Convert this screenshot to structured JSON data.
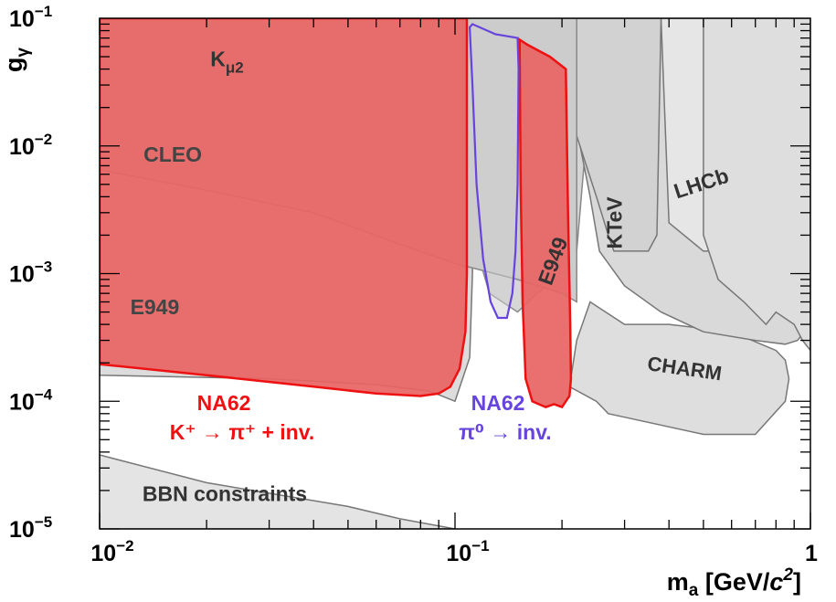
{
  "chart_data": {
    "type": "area",
    "x_scale": "log",
    "y_scale": "log",
    "xlim": [
      0.01,
      1
    ],
    "ylim": [
      1e-05,
      0.1
    ],
    "x_axis_label": "m",
    "x_axis_label_sub": "a",
    "x_axis_unit_open": " [GeV/",
    "x_axis_unit_italic": "c",
    "x_axis_unit_sup": "2",
    "x_axis_unit_close": "]",
    "y_axis_label": "g",
    "y_axis_label_sub": "γ",
    "x_ticks": [
      {
        "value": 0.01,
        "base": "10",
        "exp": "−2"
      },
      {
        "value": 0.1,
        "base": "10",
        "exp": "−1"
      },
      {
        "value": 1,
        "base": "1",
        "exp": ""
      }
    ],
    "y_ticks": [
      {
        "value": 1e-05,
        "base": "10",
        "exp": "−5"
      },
      {
        "value": 0.0001,
        "base": "10",
        "exp": "−4"
      },
      {
        "value": 0.001,
        "base": "10",
        "exp": "−3"
      },
      {
        "value": 0.01,
        "base": "10",
        "exp": "−2"
      },
      {
        "value": 0.1,
        "base": "10",
        "exp": "−1"
      }
    ],
    "grey_regions": [
      {
        "fill": "#e4e4e4",
        "stroke": "#777777",
        "points": [
          [
            0.01,
            3.8e-05
          ],
          [
            0.02,
            2.3e-05
          ],
          [
            0.05,
            1.5e-05
          ],
          [
            0.07,
            1.2e-05
          ],
          [
            0.1,
            1e-05
          ],
          [
            0.01,
            1e-05
          ]
        ]
      },
      {
        "fill": "#dcdcdc",
        "stroke": "#777777",
        "points": [
          [
            0.01,
            0.00016
          ],
          [
            0.03,
            0.00015
          ],
          [
            0.06,
            0.000135
          ],
          [
            0.085,
            0.00012
          ],
          [
            0.1,
            0.0001
          ],
          [
            0.11,
            0.00022
          ],
          [
            0.112,
            0.001
          ],
          [
            0.112,
            0.1
          ],
          [
            0.01,
            0.1
          ]
        ]
      },
      {
        "fill": "#d6d6d6",
        "stroke": "#888888",
        "points": [
          [
            0.11,
            0.1
          ],
          [
            0.112,
            0.002
          ],
          [
            0.125,
            0.0007
          ],
          [
            0.15,
            0.0005
          ],
          [
            0.17,
            0.0007
          ],
          [
            0.205,
            0.001
          ],
          [
            0.22,
            0.0015
          ],
          [
            0.25,
            0.1
          ]
        ]
      },
      {
        "fill": "#dedede",
        "stroke": "#777777",
        "points": [
          [
            0.24,
            0.0006
          ],
          [
            0.3,
            0.0004
          ],
          [
            0.4,
            0.0004
          ],
          [
            0.6,
            0.00035
          ],
          [
            0.8,
            0.00025
          ],
          [
            0.85,
            0.00021
          ],
          [
            0.87,
            0.00015
          ],
          [
            0.85,
            0.0001
          ],
          [
            0.7,
            5.5e-05
          ],
          [
            0.5,
            5.5e-05
          ],
          [
            0.3,
            7.5e-05
          ],
          [
            0.27,
            8e-05
          ],
          [
            0.25,
            0.0001
          ],
          [
            0.21,
            0.00013
          ],
          [
            0.22,
            0.0003
          ]
        ]
      },
      {
        "fill": "#d9d9d9",
        "stroke": "#777777",
        "points": [
          [
            0.22,
            0.1
          ],
          [
            0.225,
            0.01
          ],
          [
            0.24,
            0.004
          ],
          [
            0.255,
            0.0015
          ],
          [
            0.3,
            0.0008
          ],
          [
            0.38,
            0.0005
          ],
          [
            0.5,
            0.00035
          ],
          [
            0.7,
            0.0003
          ],
          [
            0.85,
            0.00028
          ],
          [
            0.92,
            0.0003
          ],
          [
            1,
            0.0004
          ],
          [
            1,
            0.1
          ]
        ]
      },
      {
        "fill": "#e6e6e6",
        "stroke": "#777777",
        "points": [
          [
            0.38,
            0.1
          ],
          [
            0.4,
            0.0025
          ],
          [
            0.5,
            0.0015
          ],
          [
            0.6,
            0.0015
          ],
          [
            0.7,
            0.002
          ],
          [
            0.72,
            0.1
          ]
        ]
      },
      {
        "fill": "#d2d2d2",
        "stroke": "#777777",
        "points": [
          [
            0.2,
            0.1
          ],
          [
            0.205,
            0.07
          ],
          [
            0.22,
            0.012
          ],
          [
            0.25,
            0.004
          ],
          [
            0.27,
            0.002
          ],
          [
            0.28,
            0.0015
          ],
          [
            0.35,
            0.0015
          ],
          [
            0.37,
            0.002
          ],
          [
            0.38,
            0.1
          ]
        ]
      },
      {
        "fill": "#dedede",
        "stroke": "#777777",
        "points": [
          [
            0.5,
            0.1
          ],
          [
            0.5,
            0.002
          ],
          [
            0.55,
            0.0009
          ],
          [
            0.65,
            0.0006
          ],
          [
            0.75,
            0.0004
          ],
          [
            0.8,
            0.0005
          ],
          [
            0.9,
            0.0004
          ],
          [
            0.95,
            0.0003
          ],
          [
            1,
            0.00025
          ],
          [
            1,
            0.1
          ]
        ]
      },
      {
        "fill": "#d4d4d4",
        "stroke": "#888888",
        "points": [
          [
            0.01,
            0.013
          ],
          [
            0.2,
            0.013
          ],
          [
            0.2,
            0.1
          ],
          [
            0.01,
            0.1
          ]
        ]
      },
      {
        "fill": "#cccccc",
        "stroke": "#888888",
        "points": [
          [
            0.01,
            0.0065
          ],
          [
            0.02,
            0.0045
          ],
          [
            0.04,
            0.003
          ],
          [
            0.07,
            0.0017
          ],
          [
            0.1,
            0.0012
          ],
          [
            0.15,
            0.0009
          ],
          [
            0.2,
            0.0007
          ],
          [
            0.22,
            0.0006
          ],
          [
            0.22,
            0.1
          ],
          [
            0.01,
            0.1
          ]
        ]
      }
    ],
    "na62_charged": {
      "label_line1": "NA62",
      "label_line2": "K⁺ → π⁺ + inv.",
      "color": "#ee1111",
      "fill": "#e86464",
      "segments": [
        [
          [
            0.01,
            0.000195
          ],
          [
            0.02,
            0.00016
          ],
          [
            0.04,
            0.00013
          ],
          [
            0.06,
            0.000115
          ],
          [
            0.08,
            0.00011
          ],
          [
            0.09,
            0.000115
          ],
          [
            0.097,
            0.00013
          ],
          [
            0.103,
            0.00018
          ],
          [
            0.107,
            0.00035
          ],
          [
            0.108,
            0.001
          ],
          [
            0.108,
            0.1
          ],
          [
            0.01,
            0.1
          ]
        ],
        [
          [
            0.152,
            0.068
          ],
          [
            0.16,
            0.062
          ],
          [
            0.185,
            0.05
          ],
          [
            0.205,
            0.04
          ],
          [
            0.208,
            0.003
          ],
          [
            0.211,
            0.0004
          ],
          [
            0.212,
            0.00015
          ],
          [
            0.21,
            0.00011
          ],
          [
            0.205,
            0.0001
          ],
          [
            0.2,
            9e-05
          ],
          [
            0.19,
            9.5e-05
          ],
          [
            0.18,
            9e-05
          ],
          [
            0.172,
            9.5e-05
          ],
          [
            0.165,
            0.0001
          ],
          [
            0.158,
            0.00015
          ],
          [
            0.155,
            0.0006
          ],
          [
            0.153,
            0.005
          ]
        ]
      ]
    },
    "na62_neutral": {
      "label_line1": "NA62",
      "label_line2": "π⁰ → inv.",
      "color": "#6644dd",
      "points": [
        [
          0.11,
          0.085
        ],
        [
          0.112,
          0.09
        ],
        [
          0.13,
          0.075
        ],
        [
          0.15,
          0.07
        ],
        [
          0.151,
          0.04
        ],
        [
          0.15,
          0.005
        ],
        [
          0.148,
          0.0015
        ],
        [
          0.145,
          0.0007
        ],
        [
          0.14,
          0.00045
        ],
        [
          0.132,
          0.00045
        ],
        [
          0.126,
          0.0006
        ],
        [
          0.12,
          0.0013
        ],
        [
          0.115,
          0.005
        ],
        [
          0.112,
          0.03
        ]
      ]
    },
    "annotations": [
      {
        "text": "K",
        "sub": "μ2",
        "x": 0.0205,
        "y": 0.042,
        "color": "#333333",
        "size": 23,
        "rotate": 0,
        "anchor": "start"
      },
      {
        "text": "CLEO",
        "sub": "",
        "x": 0.0133,
        "y": 0.0075,
        "color": "#444444",
        "size": 23,
        "rotate": 0,
        "anchor": "start"
      },
      {
        "text": "E949",
        "sub": "",
        "x": 0.0122,
        "y": 0.00048,
        "color": "#444444",
        "size": 23,
        "rotate": 0,
        "anchor": "start"
      },
      {
        "text": "E949",
        "sub": "",
        "x": 0.197,
        "y": 0.0012,
        "color": "#333333",
        "size": 23,
        "rotate": -70,
        "anchor": "middle"
      },
      {
        "text": "KTeV",
        "sub": "",
        "x": 0.295,
        "y": 0.0025,
        "color": "#333333",
        "size": 23,
        "rotate": -90,
        "anchor": "middle"
      },
      {
        "text": "LHCb",
        "sub": "",
        "x": 0.5,
        "y": 0.0045,
        "color": "#333333",
        "size": 23,
        "rotate": -18,
        "anchor": "middle"
      },
      {
        "text": "CHARM",
        "sub": "",
        "x": 0.44,
        "y": 0.00016,
        "color": "#333333",
        "size": 22,
        "rotate": 8,
        "anchor": "middle"
      },
      {
        "text": "BBN constraints",
        "sub": "",
        "x": 0.0132,
        "y": 1.65e-05,
        "color": "#333333",
        "size": 23,
        "rotate": 0,
        "anchor": "start"
      }
    ]
  }
}
